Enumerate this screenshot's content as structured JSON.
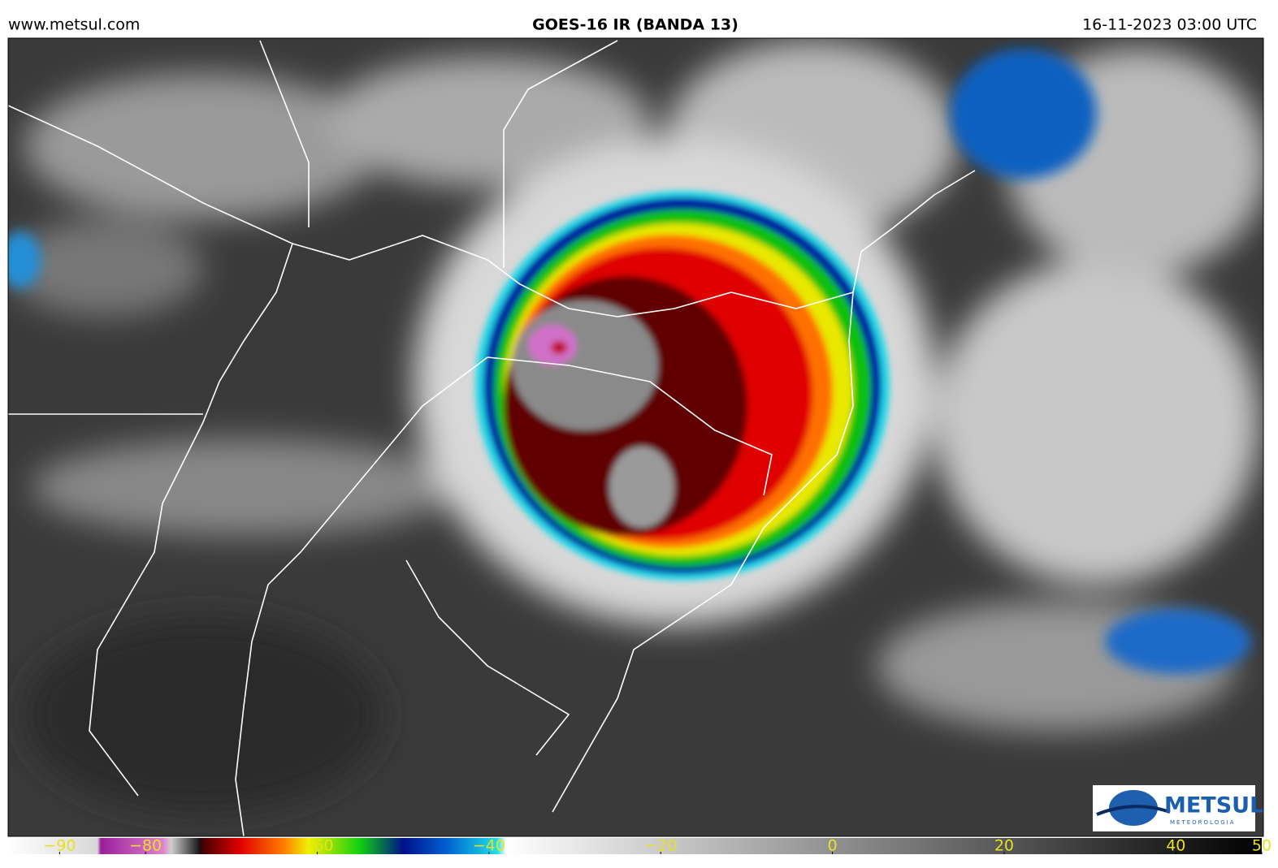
{
  "header": {
    "site": "www.metsul.com",
    "title": "GOES-16 IR (BANDA 13)",
    "timestamp": "16-11-2023 03:00 UTC"
  },
  "logo": {
    "name": "METSUL",
    "tagline": "METEOROLOGIA"
  },
  "colorbar": {
    "lim": [
      -96,
      50
    ],
    "ticks": [
      {
        "value": -90,
        "label": "−90"
      },
      {
        "value": -80,
        "label": "−80"
      },
      {
        "value": -60,
        "label": "−60"
      },
      {
        "value": -40,
        "label": "−40"
      },
      {
        "value": -20,
        "label": "−20"
      },
      0,
      20,
      40,
      50
    ],
    "stops": [
      {
        "value": -96,
        "color": "#ffffff"
      },
      {
        "value": -85.6,
        "color": "#d8d8d8"
      },
      {
        "value": -85.2,
        "color": "#9a1f9a"
      },
      {
        "value": -78,
        "color": "#e080d0"
      },
      {
        "value": -77,
        "color": "#cfcfcf"
      },
      {
        "value": -73.6,
        "color": "#101010"
      },
      {
        "value": -73.5,
        "color": "#400000"
      },
      {
        "value": -69,
        "color": "#e00000"
      },
      {
        "value": -64,
        "color": "#ff7a00"
      },
      {
        "value": -61,
        "color": "#f0f000"
      },
      {
        "value": -55,
        "color": "#10d010"
      },
      {
        "value": -50,
        "color": "#00108a"
      },
      {
        "value": -45,
        "color": "#0060d0"
      },
      {
        "value": -39,
        "color": "#20e0e8"
      },
      {
        "value": -38,
        "color": "#ffffff"
      },
      {
        "value": 50,
        "color": "#000000"
      }
    ]
  }
}
